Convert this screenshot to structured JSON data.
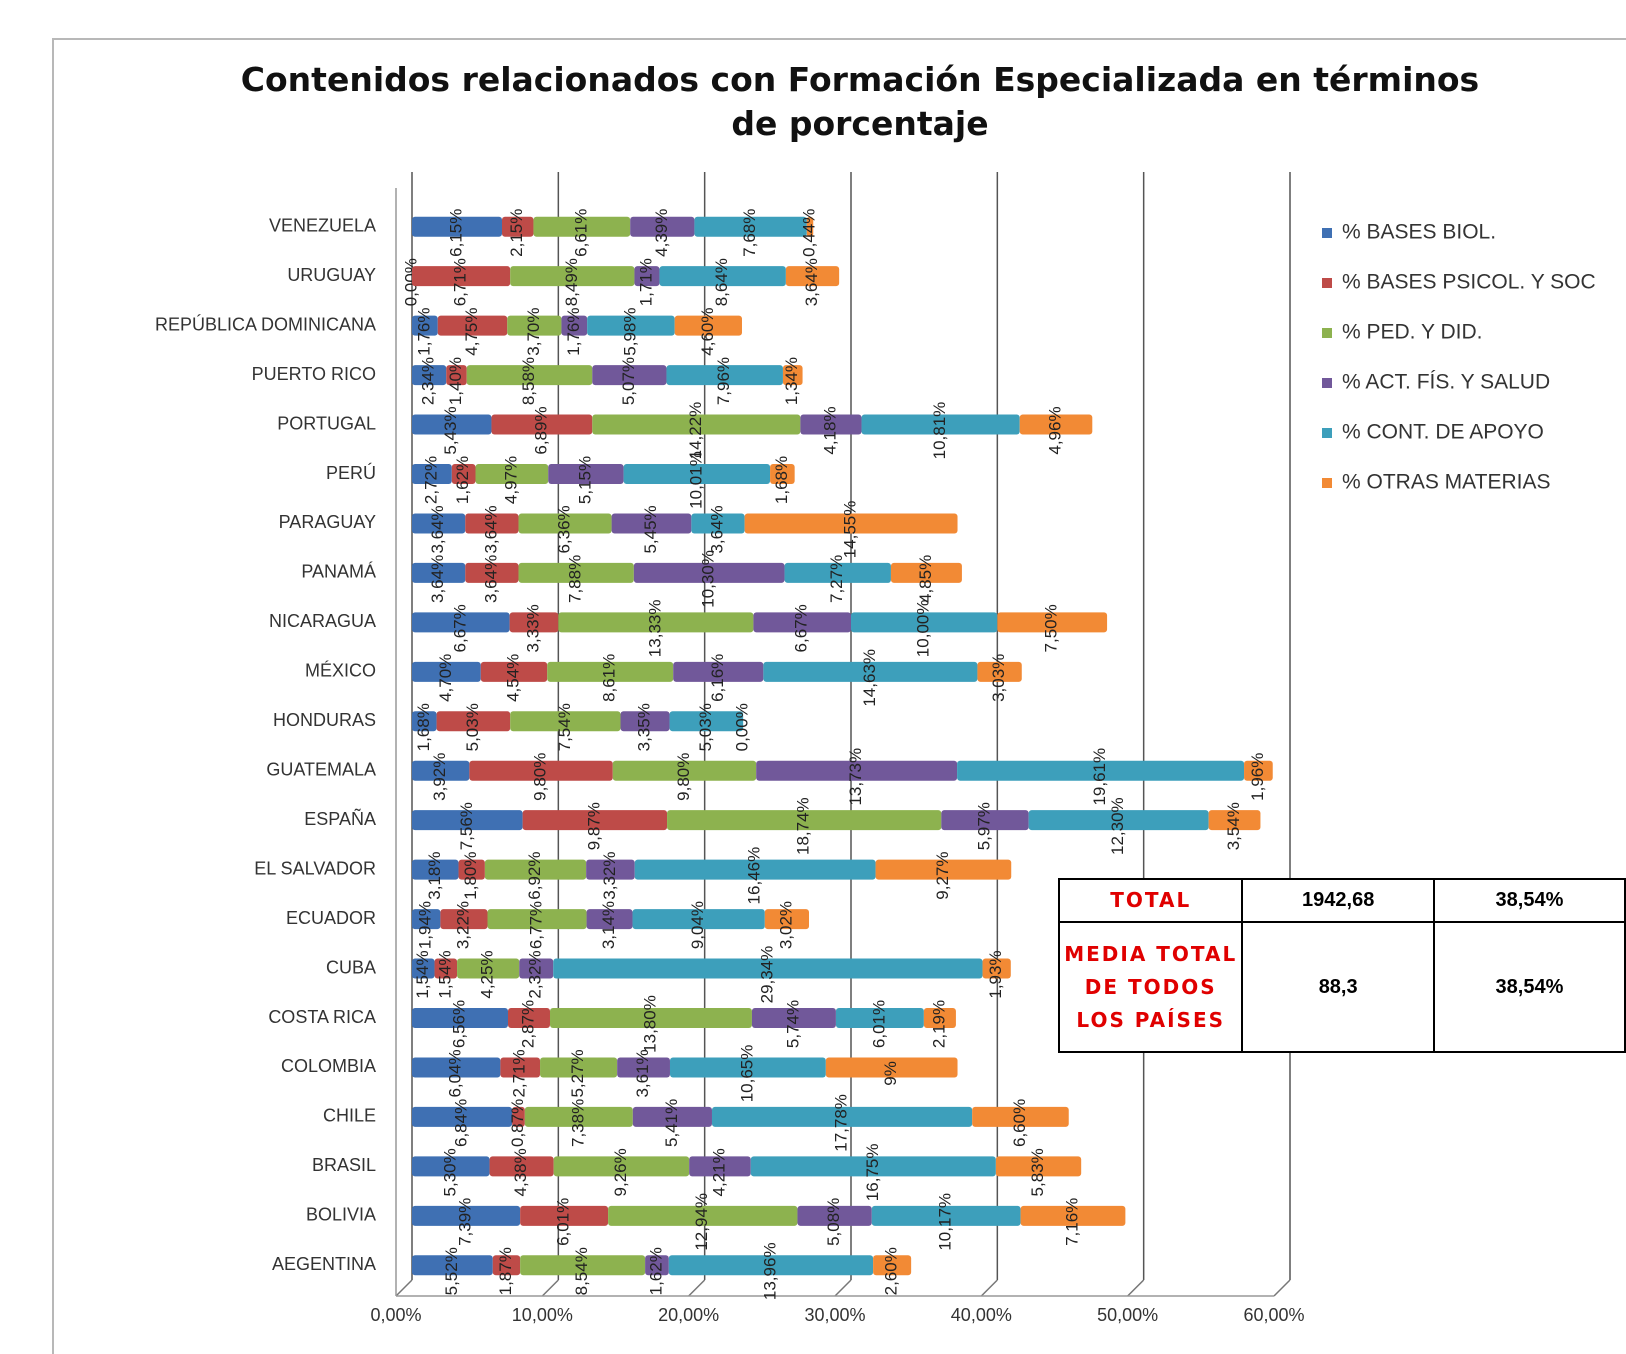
{
  "chart_data": {
    "type": "stacked_barh",
    "title": "Contenidos relacionados con Formación Especializada en términos de porcentaje",
    "categories": [
      "VENEZUELA",
      "URUGUAY",
      "REPÚBLICA DOMINICANA",
      "PUERTO RICO",
      "PORTUGAL",
      "PERÚ",
      "PARAGUAY",
      "PANAMÁ",
      "NICARAGUA",
      "MÉXICO",
      "HONDURAS",
      "GUATEMALA",
      "ESPAÑA",
      "EL SALVADOR",
      "ECUADOR",
      "CUBA",
      "COSTA RICA",
      "COLOMBIA",
      "CHILE",
      "BRASIL",
      "BOLIVIA",
      "AEGENTINA"
    ],
    "series": [
      {
        "name": "% BASES BIOL.",
        "color": "#3f70b3",
        "values": [
          6.15,
          0,
          1.76,
          2.34,
          5.43,
          2.72,
          3.64,
          3.64,
          6.67,
          4.7,
          1.68,
          3.92,
          7.56,
          3.18,
          1.94,
          1.54,
          6.56,
          6.04,
          6.84,
          5.3,
          7.39,
          5.52
        ],
        "value_labels": [
          "6,15%",
          "0,00%",
          "1,76%",
          "2,34%",
          "5,43%",
          "2,72%",
          "3,64%",
          "3,64%",
          "6,67%",
          "4,70%",
          "1,68%",
          "3,92%",
          "7,56%",
          "3,18%",
          "1,94%",
          "1,54%",
          "6,56%",
          "6,04%",
          "6,84%",
          "5,30%",
          "7,39%",
          "5,52%"
        ]
      },
      {
        "name": "% BASES PSICOL. Y SOC",
        "color": "#be4b48",
        "values": [
          2.15,
          6.71,
          4.75,
          1.4,
          6.89,
          1.62,
          3.64,
          3.64,
          3.33,
          4.54,
          5.03,
          9.8,
          9.87,
          1.8,
          3.22,
          1.54,
          2.87,
          2.71,
          0.87,
          4.38,
          6.01,
          1.87
        ],
        "value_labels": [
          "2,15%",
          "6,71%",
          "4,75%",
          "1,40%",
          "6,89%",
          "1,62%",
          "3,64%",
          "3,64%",
          "3,33%",
          "4,54%",
          "5,03%",
          "9,80%",
          "9,87%",
          "1,80%",
          "3,22%",
          "1,54%",
          "2,87%",
          "2,71%",
          "0,87%",
          "4,38%",
          "6,01%",
          "1,87%"
        ]
      },
      {
        "name": "% PED. Y DID.",
        "color": "#8db24f",
        "values": [
          6.61,
          8.49,
          3.7,
          8.58,
          14.22,
          4.97,
          6.36,
          7.88,
          13.33,
          8.61,
          7.54,
          9.8,
          18.74,
          6.92,
          6.77,
          4.25,
          13.8,
          5.27,
          7.38,
          9.26,
          12.94,
          8.54
        ],
        "value_labels": [
          "6,61%",
          "8,49%",
          "3,70%",
          "8,58%",
          "14,22%",
          "4,97%",
          "6,36%",
          "7,88%",
          "13,33%",
          "8,61%",
          "7,54%",
          "9,80%",
          "18,74%",
          "6,92%",
          "6,77%",
          "4,25%",
          "13,80%",
          "5,27%",
          "7,38%",
          "9,26%",
          "12,94%",
          "8,54%"
        ]
      },
      {
        "name": "% ACT. FÍS. Y SALUD",
        "color": "#71589a",
        "values": [
          4.39,
          1.71,
          1.76,
          5.07,
          4.18,
          5.15,
          5.45,
          10.3,
          6.67,
          6.16,
          3.35,
          13.73,
          5.97,
          3.32,
          3.14,
          2.32,
          5.74,
          3.61,
          5.41,
          4.21,
          5.08,
          1.62
        ],
        "value_labels": [
          "4,39%",
          "1,71%",
          "1,76%",
          "5,07%",
          "4,18%",
          "5,15%",
          "5,45%",
          "10,30%",
          "6,67%",
          "6,16%",
          "3,35%",
          "13,73%",
          "5,97%",
          "3,32%",
          "3,14%",
          "2,32%",
          "5,74%",
          "3,61%",
          "5,41%",
          "4,21%",
          "5,08%",
          "1,62%"
        ]
      },
      {
        "name": "% CONT. DE APOYO",
        "color": "#3d9fbb",
        "values": [
          7.68,
          8.64,
          5.98,
          7.96,
          10.81,
          10.01,
          3.64,
          7.27,
          10.0,
          14.63,
          5.03,
          19.61,
          12.3,
          16.46,
          9.04,
          29.34,
          6.01,
          10.65,
          17.78,
          16.75,
          10.17,
          13.96
        ],
        "value_labels": [
          "7,68%",
          "8,64%",
          "5,98%",
          "7,96%",
          "10,81%",
          "10,01%",
          "3,64%",
          "7,27%",
          "10,00%",
          "14,63%",
          "5,03%",
          "19,61%",
          "12,30%",
          "16,46%",
          "9,04%",
          "29,34%",
          "6,01%",
          "10,65%",
          "17,78%",
          "16,75%",
          "10,17%",
          "13,96%"
        ]
      },
      {
        "name": "% OTRAS MATERIAS",
        "color": "#f28a35",
        "values": [
          0.44,
          3.64,
          4.6,
          1.34,
          4.96,
          1.68,
          14.55,
          4.85,
          7.5,
          3.03,
          0,
          1.96,
          3.54,
          9.27,
          3.02,
          1.93,
          2.19,
          9,
          6.6,
          5.83,
          7.16,
          2.6
        ],
        "value_labels": [
          "0,44%",
          "3,64%",
          "4,60%",
          "1,34%",
          "4,96%",
          "1,68%",
          "14,55%",
          "4,85%",
          "7,50%",
          "3,03%",
          "0,00%",
          "1,96%",
          "3,54%",
          "9,27%",
          "3,02%",
          "1,93%",
          "2,19%",
          "9%",
          "6,60%",
          "5,83%",
          "7,16%",
          "2,60%"
        ]
      }
    ],
    "xlim": [
      0,
      60
    ],
    "xticks": [
      {
        "value": 0,
        "label": "0,00%"
      },
      {
        "value": 10,
        "label": "10,00%"
      },
      {
        "value": 20,
        "label": "20,00%"
      },
      {
        "value": 30,
        "label": "30,00%"
      },
      {
        "value": 40,
        "label": "40,00%"
      },
      {
        "value": 50,
        "label": "50,00%"
      },
      {
        "value": 60,
        "label": "60,00%"
      }
    ],
    "grid": true,
    "legend": "right"
  },
  "table": {
    "rows": [
      [
        "TOTAL",
        "1942,68",
        "38,54%"
      ],
      [
        "MEDIA TOTAL DE TODOS LOS PAÍSES",
        "88,3",
        "38,54%"
      ]
    ]
  }
}
